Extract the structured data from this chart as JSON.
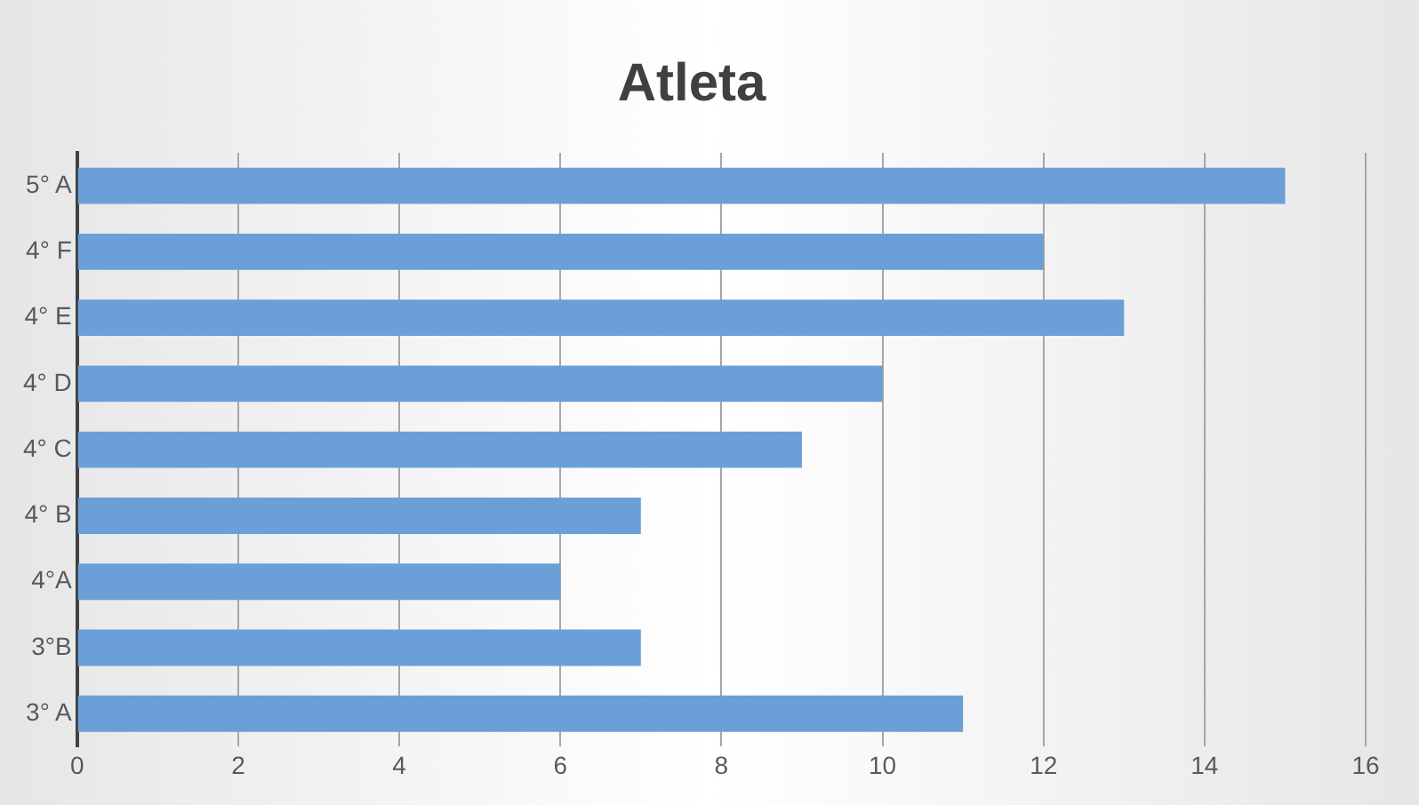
{
  "chart_data": {
    "type": "bar",
    "title": "Atleta",
    "orientation": "horizontal",
    "categories": [
      "5° A",
      "4° F",
      "4° E",
      "4° D",
      "4° C",
      "4° B",
      "4°A",
      "3°B",
      "3° A"
    ],
    "values": [
      15,
      12,
      13,
      10,
      9,
      7,
      6,
      7,
      11
    ],
    "color": "#6a9fd8",
    "xlim": [
      0,
      16
    ],
    "xticks": [
      0,
      2,
      4,
      6,
      8,
      10,
      12,
      14,
      16
    ],
    "grid": "x",
    "legend": false
  }
}
